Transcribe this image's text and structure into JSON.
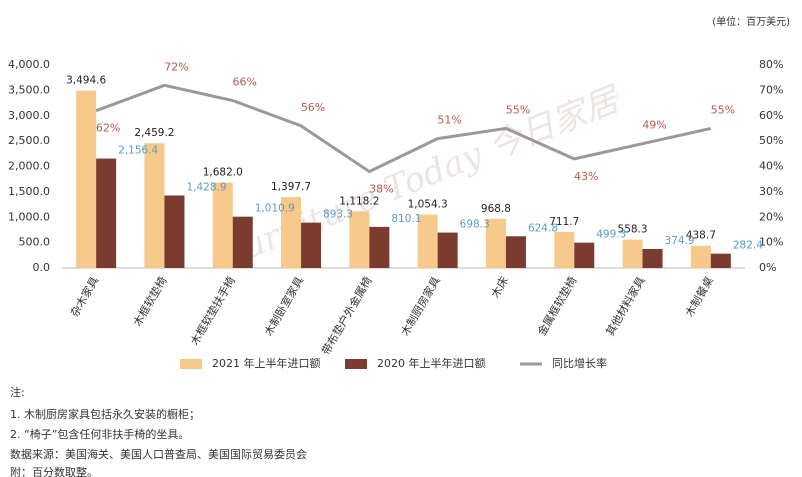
{
  "chart_data": {
    "type": "bar",
    "unit_label": "(单位：百万美元)",
    "watermark": "Furniture Today 今日家居",
    "categories": [
      "杂木家具",
      "木框软垫椅",
      "木框软垫扶手椅",
      "木制卧室家具",
      "带布垫户外金属椅",
      "木制厨房家具",
      "木床",
      "金属框软垫椅",
      "其他材料家具",
      "木制餐桌"
    ],
    "series": [
      {
        "name": "2021 年上半年进口额",
        "color": "#f6c88a",
        "label_color": "#222",
        "values": [
          3494.6,
          2459.2,
          1682.0,
          1397.7,
          1118.2,
          1054.3,
          968.8,
          711.7,
          558.3,
          438.7
        ],
        "value_labels": [
          "3,494.6",
          "2,459.2",
          "1,682.0",
          "1,397.7",
          "1,118.2",
          "1,054.3",
          "968.8",
          "711.7",
          "558.3",
          "438.7"
        ]
      },
      {
        "name": "2020 年上半年进口额",
        "color": "#7b3b2f",
        "label_color": "#5b9bc8",
        "values": [
          2156.4,
          1428.9,
          1010.9,
          893.3,
          810.1,
          698.3,
          624.8,
          499.3,
          374.9,
          282.4
        ],
        "value_labels": [
          "2,156.4",
          "1,428.9",
          "1,010.9",
          "893.3",
          "810.1",
          "698.3",
          "624.8",
          "499.3",
          "374.9",
          "282.4"
        ]
      },
      {
        "name": "同比增长率",
        "type": "line",
        "axis": "y2",
        "color": "#999999",
        "label_color": "#b9574f",
        "values": [
          62,
          72,
          66,
          56,
          38,
          51,
          55,
          43,
          49,
          55
        ],
        "value_labels": [
          "62%",
          "72%",
          "66%",
          "56%",
          "38%",
          "51%",
          "55%",
          "43%",
          "49%",
          "55%"
        ]
      }
    ],
    "ylim": [
      0,
      4000
    ],
    "yticks": [
      {
        "value": 0,
        "label": "0.0"
      },
      {
        "value": 500,
        "label": "500.0"
      },
      {
        "value": 1000,
        "label": "1,000.0"
      },
      {
        "value": 1500,
        "label": "1,500.0"
      },
      {
        "value": 2000,
        "label": "2,000.0"
      },
      {
        "value": 2500,
        "label": "2,500.0"
      },
      {
        "value": 3000,
        "label": "3,000.0"
      },
      {
        "value": 3500,
        "label": "3,500.0"
      },
      {
        "value": 4000,
        "label": "4,000.0"
      }
    ],
    "y2lim": [
      0,
      80
    ],
    "y2ticks": [
      {
        "value": 0,
        "label": "0%"
      },
      {
        "value": 10,
        "label": "10%"
      },
      {
        "value": 20,
        "label": "20%"
      },
      {
        "value": 30,
        "label": "30%"
      },
      {
        "value": 40,
        "label": "40%"
      },
      {
        "value": 50,
        "label": "50%"
      },
      {
        "value": 60,
        "label": "60%"
      },
      {
        "value": 70,
        "label": "70%"
      },
      {
        "value": 80,
        "label": "80%"
      }
    ],
    "grid": false
  },
  "notes": {
    "title": "注:",
    "lines": [
      "1. 木制厨房家具包括永久安装的橱柜；",
      "2. “椅子”包含任何非扶手椅的坐具。",
      "数据来源：美国海关、美国人口普查局、美国国际贸易委员会",
      "附：百分数取整。"
    ]
  }
}
